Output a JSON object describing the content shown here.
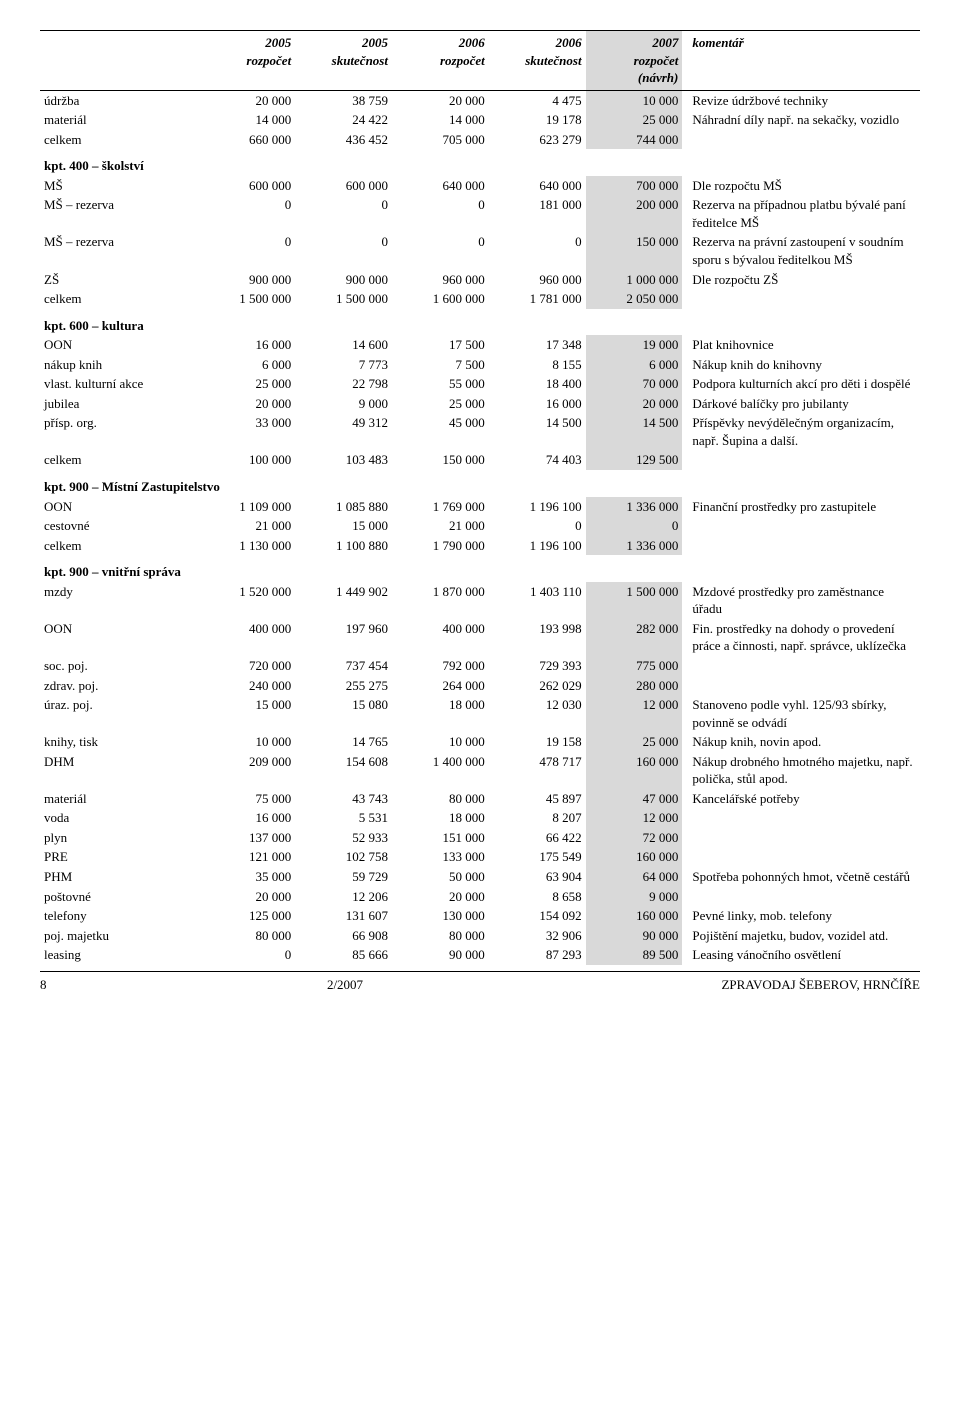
{
  "headers": {
    "col1": "",
    "c2005r": "2005\nrozpočet",
    "c2005s": "2005\nskutečnost",
    "c2006r": "2006\nrozpočet",
    "c2006s": "2006\nskutečnost",
    "c2007r": "2007\nrozpočet\n(návrh)",
    "comment": "komentář"
  },
  "rows": [
    {
      "label": "údržba",
      "v": [
        "20 000",
        "38 759",
        "20 000",
        "4 475",
        "10 000"
      ],
      "c": "Revize údržbové techniky"
    },
    {
      "label": "materiál",
      "v": [
        "14 000",
        "24 422",
        "14 000",
        "19 178",
        "25 000"
      ],
      "c": "Náhradní díly\nnapř. na sekačky, vozidlo"
    },
    {
      "label": "celkem",
      "v": [
        "660 000",
        "436 452",
        "705 000",
        "623 279",
        "744 000"
      ],
      "c": ""
    },
    {
      "section": "kpt. 400 – školství"
    },
    {
      "label": "MŠ",
      "v": [
        "600 000",
        "600 000",
        "640 000",
        "640 000",
        "700 000"
      ],
      "c": "Dle rozpočtu MŠ"
    },
    {
      "label": "MŠ – rezerva",
      "v": [
        "0",
        "0",
        "0",
        "181 000",
        "200 000"
      ],
      "c": "Rezerva na případnou platbu bývalé paní ředitelce MŠ"
    },
    {
      "label": "MŠ – rezerva",
      "v": [
        "0",
        "0",
        "0",
        "0",
        "150 000"
      ],
      "c": "Rezerva na právní zastoupení v soudním sporu s bývalou ředitelkou MŠ"
    },
    {
      "label": "ZŠ",
      "v": [
        "900 000",
        "900 000",
        "960 000",
        "960 000",
        "1 000 000"
      ],
      "c": "Dle rozpočtu ZŠ"
    },
    {
      "label": "celkem",
      "v": [
        "1 500 000",
        "1 500 000",
        "1 600 000",
        "1 781 000",
        "2 050 000"
      ],
      "c": ""
    },
    {
      "section": "kpt. 600 – kultura"
    },
    {
      "label": "OON",
      "v": [
        "16 000",
        "14 600",
        "17 500",
        "17 348",
        "19 000"
      ],
      "c": "Plat knihovnice"
    },
    {
      "label": "nákup knih",
      "v": [
        "6 000",
        "7 773",
        "7 500",
        "8 155",
        "6 000"
      ],
      "c": "Nákup knih do knihovny"
    },
    {
      "label": "vlast. kulturní akce",
      "v": [
        "25 000",
        "22 798",
        "55 000",
        "18 400",
        "70 000"
      ],
      "c": "Podpora kulturních akcí pro děti i dospělé"
    },
    {
      "label": "jubilea",
      "v": [
        "20 000",
        "9 000",
        "25 000",
        "16 000",
        "20 000"
      ],
      "c": "Dárkové balíčky pro jubilanty"
    },
    {
      "label": "přísp. org.",
      "v": [
        "33 000",
        "49 312",
        "45 000",
        "14 500",
        "14 500"
      ],
      "c": "Příspěvky nevýdělečným organizacím, např. Šupina a další."
    },
    {
      "label": "celkem",
      "v": [
        "100 000",
        "103 483",
        "150 000",
        "74 403",
        "129 500"
      ],
      "c": ""
    },
    {
      "section": "kpt. 900 – Místní Zastupitelstvo"
    },
    {
      "label": "OON",
      "v": [
        "1 109 000",
        "1 085 880",
        "1 769 000",
        "1 196 100",
        "1 336 000"
      ],
      "c": "Finanční prostředky pro zastupitele"
    },
    {
      "label": "cestovné",
      "v": [
        "21 000",
        "15 000",
        "21 000",
        "0",
        "0"
      ],
      "c": ""
    },
    {
      "label": "celkem",
      "v": [
        "1 130 000",
        "1 100 880",
        "1 790 000",
        "1 196 100",
        "1 336 000"
      ],
      "c": ""
    },
    {
      "section": "kpt. 900 – vnitřní správa"
    },
    {
      "label": "mzdy",
      "v": [
        "1 520 000",
        "1 449 902",
        "1 870 000",
        "1 403 110",
        "1 500 000"
      ],
      "c": "Mzdové prostředky pro zaměstnance úřadu"
    },
    {
      "label": "OON",
      "v": [
        "400 000",
        "197 960",
        "400 000",
        "193 998",
        "282 000"
      ],
      "c": "Fin. prostředky na dohody o provedení práce a činnosti, např. správce, uklízečka"
    },
    {
      "label": "soc. poj.",
      "v": [
        "720 000",
        "737 454",
        "792 000",
        "729 393",
        "775 000"
      ],
      "c": ""
    },
    {
      "label": "zdrav. poj.",
      "v": [
        "240 000",
        "255 275",
        "264 000",
        "262 029",
        "280 000"
      ],
      "c": ""
    },
    {
      "label": "úraz. poj.",
      "v": [
        "15 000",
        "15 080",
        "18 000",
        "12 030",
        "12 000"
      ],
      "c": "Stanoveno podle vyhl. 125/93 sbírky, povinně se odvádí"
    },
    {
      "label": "knihy, tisk",
      "v": [
        "10 000",
        "14 765",
        "10 000",
        "19 158",
        "25 000"
      ],
      "c": "Nákup knih, novin apod."
    },
    {
      "label": "DHM",
      "v": [
        "209 000",
        "154 608",
        "1 400 000",
        "478 717",
        "160 000"
      ],
      "c": "Nákup drobného hmotného majetku, např. polička, stůl apod."
    },
    {
      "label": "materiál",
      "v": [
        "75 000",
        "43 743",
        "80 000",
        "45 897",
        "47 000"
      ],
      "c": "Kancelářské potřeby"
    },
    {
      "label": "voda",
      "v": [
        "16 000",
        "5 531",
        "18 000",
        "8 207",
        "12 000"
      ],
      "c": ""
    },
    {
      "label": "plyn",
      "v": [
        "137 000",
        "52 933",
        "151 000",
        "66 422",
        "72 000"
      ],
      "c": ""
    },
    {
      "label": "PRE",
      "v": [
        "121 000",
        "102 758",
        "133 000",
        "175 549",
        "160 000"
      ],
      "c": ""
    },
    {
      "label": "PHM",
      "v": [
        "35 000",
        "59 729",
        "50 000",
        "63 904",
        "64 000"
      ],
      "c": "Spotřeba pohonných hmot, včetně cestářů"
    },
    {
      "label": "poštovné",
      "v": [
        "20 000",
        "12 206",
        "20 000",
        "8 658",
        "9 000"
      ],
      "c": ""
    },
    {
      "label": "telefony",
      "v": [
        "125 000",
        "131 607",
        "130 000",
        "154 092",
        "160 000"
      ],
      "c": "Pevné linky, mob. telefony"
    },
    {
      "label": "poj. majetku",
      "v": [
        "80 000",
        "66 908",
        "80 000",
        "32 906",
        "90 000"
      ],
      "c": "Pojištění majetku, budov, vozidel atd."
    },
    {
      "label": "leasing",
      "v": [
        "0",
        "85 666",
        "90 000",
        "87 293",
        "89 500"
      ],
      "c": "Leasing vánočního osvětlení"
    }
  ],
  "footer": {
    "page": "8",
    "center": "2/2007",
    "right": "ZPRAVODAJ ŠEBEROV, HRNČÍŘE"
  }
}
